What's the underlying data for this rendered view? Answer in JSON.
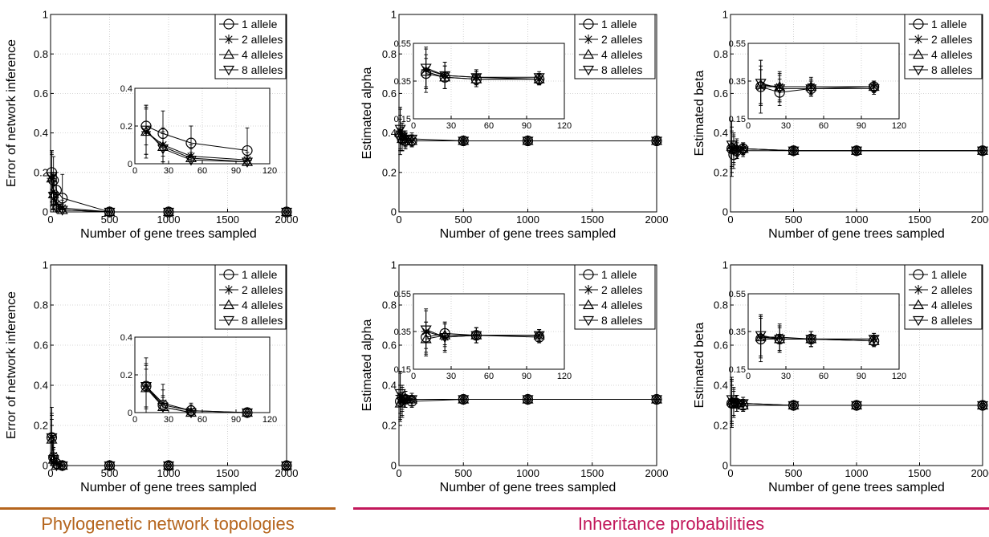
{
  "figure": {
    "footer_left_label": "Phylogenetic network topologies",
    "footer_right_label": "Inheritance probabilities",
    "footer_left_color": "#b5651d",
    "footer_right_color": "#c2185b"
  },
  "chart_data": [
    {
      "id": "top-left",
      "type": "line",
      "xlabel": "Number of gene trees sampled",
      "ylabel": "Error of network inference",
      "xlim": [
        0,
        2000
      ],
      "ylim": [
        0,
        1
      ],
      "xticks": [
        0,
        500,
        1000,
        1500,
        2000
      ],
      "yticks": [
        0,
        0.2,
        0.4,
        0.6,
        0.8,
        1
      ],
      "ytick_labels": [
        "0",
        "0.2",
        "0.4",
        "0.6",
        "0.8",
        "1"
      ],
      "legend": "top-right",
      "grid": true,
      "x": [
        10,
        25,
        50,
        100,
        500,
        1000,
        2000
      ],
      "series": [
        {
          "name": "1 allele",
          "marker": "circle",
          "values": [
            0.2,
            0.16,
            0.11,
            0.07,
            0,
            0,
            0
          ],
          "err": [
            0.1,
            0.12,
            0.09,
            0.12,
            0,
            0,
            0
          ]
        },
        {
          "name": "2 alleles",
          "marker": "star",
          "values": [
            0.17,
            0.1,
            0.04,
            0.02,
            0,
            0,
            0
          ],
          "err": [
            0.14,
            0.09,
            0.06,
            0.04,
            0,
            0,
            0
          ]
        },
        {
          "name": "4 alleles",
          "marker": "triangle-up",
          "values": [
            0.17,
            0.09,
            0.03,
            0.01,
            0,
            0,
            0
          ],
          "err": [
            0.12,
            0.08,
            0.05,
            0.03,
            0,
            0,
            0
          ]
        },
        {
          "name": "8 alleles",
          "marker": "triangle-down",
          "values": [
            0.18,
            0.08,
            0.02,
            0.01,
            0,
            0,
            0
          ],
          "err": [
            0.13,
            0.08,
            0.04,
            0.02,
            0,
            0,
            0
          ]
        }
      ],
      "inset": {
        "xlim": [
          0,
          120
        ],
        "ylim": [
          0,
          0.4
        ],
        "xticks": [
          0,
          30,
          60,
          90,
          120
        ],
        "yticks": [
          0,
          0.2,
          0.4
        ],
        "ytick_labels": [
          "0",
          "0.2",
          "0.4"
        ],
        "n_points": 4
      }
    },
    {
      "id": "top-middle",
      "type": "line",
      "xlabel": "Number of gene trees sampled",
      "ylabel": "Estimated alpha",
      "xlim": [
        0,
        2000
      ],
      "ylim": [
        0,
        1
      ],
      "xticks": [
        0,
        500,
        1000,
        1500,
        2000
      ],
      "yticks": [
        0,
        0.2,
        0.4,
        0.6,
        0.8,
        1
      ],
      "ytick_labels": [
        "0",
        "0.2",
        "0.4",
        "0.6",
        "0.8",
        "1"
      ],
      "legend": "top-right",
      "grid": true,
      "x": [
        10,
        25,
        50,
        100,
        500,
        1000,
        2000
      ],
      "series": [
        {
          "name": "1 allele",
          "marker": "circle",
          "values": [
            0.39,
            0.37,
            0.36,
            0.36,
            0.36,
            0.36,
            0.36
          ],
          "err": [
            0.08,
            0.06,
            0.04,
            0.03,
            0.01,
            0.01,
            0.01
          ]
        },
        {
          "name": "2 alleles",
          "marker": "star",
          "values": [
            0.41,
            0.38,
            0.37,
            0.36,
            0.36,
            0.36,
            0.36
          ],
          "err": [
            0.12,
            0.07,
            0.04,
            0.03,
            0.01,
            0.01,
            0.01
          ]
        },
        {
          "name": "4 alleles",
          "marker": "triangle-up",
          "values": [
            0.4,
            0.37,
            0.36,
            0.36,
            0.36,
            0.36,
            0.36
          ],
          "err": [
            0.09,
            0.06,
            0.04,
            0.03,
            0.01,
            0.01,
            0.01
          ]
        },
        {
          "name": "8 alleles",
          "marker": "triangle-down",
          "values": [
            0.42,
            0.38,
            0.37,
            0.37,
            0.36,
            0.36,
            0.36
          ],
          "err": [
            0.1,
            0.07,
            0.04,
            0.03,
            0.01,
            0.01,
            0.01
          ]
        }
      ],
      "inset": {
        "xlim": [
          0,
          120
        ],
        "ylim": [
          0.15,
          0.55
        ],
        "xticks": [
          0,
          30,
          60,
          90,
          120
        ],
        "yticks": [
          0.15,
          0.35,
          0.55
        ],
        "ytick_labels": [
          "0.15",
          "0.35",
          "0.55"
        ],
        "n_points": 4
      }
    },
    {
      "id": "top-right",
      "type": "line",
      "xlabel": "Number of gene trees sampled",
      "ylabel": "Estimated beta",
      "xlim": [
        0,
        2000
      ],
      "ylim": [
        0,
        1
      ],
      "xticks": [
        0,
        500,
        1000,
        1500,
        2000
      ],
      "yticks": [
        0,
        0.2,
        0.4,
        0.6,
        0.8,
        1
      ],
      "ytick_labels": [
        "0",
        "0.2",
        "0.4",
        "0.6",
        "0.8",
        "1"
      ],
      "legend": "top-right",
      "grid": true,
      "x": [
        10,
        25,
        50,
        100,
        500,
        1000,
        2000
      ],
      "series": [
        {
          "name": "1 allele",
          "marker": "circle",
          "values": [
            0.32,
            0.29,
            0.31,
            0.32,
            0.31,
            0.31,
            0.31
          ],
          "err": [
            0.09,
            0.07,
            0.04,
            0.03,
            0.01,
            0.01,
            0.01
          ]
        },
        {
          "name": "2 alleles",
          "marker": "star",
          "values": [
            0.32,
            0.32,
            0.32,
            0.32,
            0.31,
            0.31,
            0.31
          ],
          "err": [
            0.14,
            0.08,
            0.05,
            0.03,
            0.01,
            0.01,
            0.01
          ]
        },
        {
          "name": "4 alleles",
          "marker": "triangle-up",
          "values": [
            0.33,
            0.32,
            0.32,
            0.32,
            0.31,
            0.31,
            0.31
          ],
          "err": [
            0.1,
            0.07,
            0.04,
            0.03,
            0.01,
            0.01,
            0.01
          ]
        },
        {
          "name": "8 alleles",
          "marker": "triangle-down",
          "values": [
            0.34,
            0.31,
            0.31,
            0.31,
            0.31,
            0.31,
            0.31
          ],
          "err": [
            0.12,
            0.07,
            0.04,
            0.03,
            0.01,
            0.01,
            0.01
          ]
        }
      ],
      "inset": {
        "xlim": [
          0,
          120
        ],
        "ylim": [
          0.15,
          0.55
        ],
        "xticks": [
          0,
          30,
          60,
          90,
          120
        ],
        "yticks": [
          0.15,
          0.35,
          0.55
        ],
        "ytick_labels": [
          "0.15",
          "0.35",
          "0.55"
        ],
        "n_points": 4
      }
    },
    {
      "id": "bottom-left",
      "type": "line",
      "xlabel": "Number of gene trees sampled",
      "ylabel": "Error of network inference",
      "xlim": [
        0,
        2000
      ],
      "ylim": [
        0,
        1
      ],
      "xticks": [
        0,
        500,
        1000,
        1500,
        2000
      ],
      "yticks": [
        0,
        0.2,
        0.4,
        0.6,
        0.8,
        1
      ],
      "ytick_labels": [
        "0",
        "0.2",
        "0.4",
        "0.6",
        "0.8",
        "1"
      ],
      "legend": "top-right",
      "grid": true,
      "x": [
        10,
        25,
        50,
        100,
        500,
        1000,
        2000
      ],
      "series": [
        {
          "name": "1 allele",
          "marker": "circle",
          "values": [
            0.14,
            0.04,
            0.01,
            0,
            0,
            0,
            0
          ],
          "err": [
            0.15,
            0.08,
            0.03,
            0,
            0,
            0,
            0
          ]
        },
        {
          "name": "2 alleles",
          "marker": "star",
          "values": [
            0.14,
            0.05,
            0.01,
            0,
            0,
            0,
            0
          ],
          "err": [
            0.12,
            0.1,
            0.04,
            0,
            0,
            0,
            0
          ]
        },
        {
          "name": "4 alleles",
          "marker": "triangle-up",
          "values": [
            0.13,
            0.03,
            0,
            0,
            0,
            0,
            0
          ],
          "err": [
            0.1,
            0.05,
            0.02,
            0,
            0,
            0,
            0
          ]
        },
        {
          "name": "8 alleles",
          "marker": "triangle-down",
          "values": [
            0.14,
            0.03,
            0,
            0,
            0,
            0,
            0
          ],
          "err": [
            0.11,
            0.06,
            0.02,
            0,
            0,
            0,
            0
          ]
        }
      ],
      "inset": {
        "xlim": [
          0,
          120
        ],
        "ylim": [
          0,
          0.4
        ],
        "xticks": [
          0,
          30,
          60,
          90,
          120
        ],
        "yticks": [
          0,
          0.2,
          0.4
        ],
        "ytick_labels": [
          "0",
          "0.2",
          "0.4"
        ],
        "n_points": 4
      }
    },
    {
      "id": "bottom-middle",
      "type": "line",
      "xlabel": "Number of gene trees sampled",
      "ylabel": "Estimated alpha",
      "xlim": [
        0,
        2000
      ],
      "ylim": [
        0,
        1
      ],
      "xticks": [
        0,
        500,
        1000,
        1500,
        2000
      ],
      "yticks": [
        0,
        0.2,
        0.4,
        0.6,
        0.8,
        1
      ],
      "ytick_labels": [
        "0",
        "0.2",
        "0.4",
        "0.6",
        "0.8",
        "1"
      ],
      "legend": "top-right",
      "grid": true,
      "x": [
        10,
        25,
        50,
        100,
        500,
        1000,
        2000
      ],
      "series": [
        {
          "name": "1 allele",
          "marker": "circle",
          "values": [
            0.32,
            0.34,
            0.33,
            0.32,
            0.33,
            0.33,
            0.33
          ],
          "err": [
            0.08,
            0.06,
            0.04,
            0.03,
            0.01,
            0.01,
            0.01
          ]
        },
        {
          "name": "2 alleles",
          "marker": "star",
          "values": [
            0.35,
            0.32,
            0.33,
            0.33,
            0.33,
            0.33,
            0.33
          ],
          "err": [
            0.12,
            0.08,
            0.04,
            0.03,
            0.01,
            0.01,
            0.01
          ]
        },
        {
          "name": "4 alleles",
          "marker": "triangle-up",
          "values": [
            0.31,
            0.33,
            0.33,
            0.33,
            0.33,
            0.33,
            0.33
          ],
          "err": [
            0.09,
            0.06,
            0.04,
            0.03,
            0.01,
            0.01,
            0.01
          ]
        },
        {
          "name": "8 alleles",
          "marker": "triangle-down",
          "values": [
            0.36,
            0.32,
            0.33,
            0.33,
            0.33,
            0.33,
            0.33
          ],
          "err": [
            0.1,
            0.07,
            0.04,
            0.03,
            0.01,
            0.01,
            0.01
          ]
        }
      ],
      "inset": {
        "xlim": [
          0,
          120
        ],
        "ylim": [
          0.15,
          0.55
        ],
        "xticks": [
          0,
          30,
          60,
          90,
          120
        ],
        "yticks": [
          0.15,
          0.35,
          0.55
        ],
        "ytick_labels": [
          "0.15",
          "0.35",
          "0.55"
        ],
        "n_points": 4
      }
    },
    {
      "id": "bottom-right",
      "type": "line",
      "xlabel": "Number of gene trees sampled",
      "ylabel": "Estimated beta",
      "xlim": [
        0,
        2000
      ],
      "ylim": [
        0,
        1
      ],
      "xticks": [
        0,
        500,
        1000,
        1500,
        2000
      ],
      "yticks": [
        0,
        0.2,
        0.4,
        0.6,
        0.8,
        1
      ],
      "ytick_labels": [
        "0",
        "0.2",
        "0.4",
        "0.6",
        "0.8",
        "1"
      ],
      "legend": "top-right",
      "grid": true,
      "x": [
        10,
        25,
        50,
        100,
        500,
        1000,
        2000
      ],
      "series": [
        {
          "name": "1 allele",
          "marker": "circle",
          "values": [
            0.31,
            0.31,
            0.31,
            0.3,
            0.3,
            0.3,
            0.3
          ],
          "err": [
            0.12,
            0.07,
            0.04,
            0.03,
            0.01,
            0.01,
            0.01
          ]
        },
        {
          "name": "2 alleles",
          "marker": "star",
          "values": [
            0.32,
            0.32,
            0.31,
            0.31,
            0.3,
            0.3,
            0.3
          ],
          "err": [
            0.11,
            0.07,
            0.04,
            0.03,
            0.01,
            0.01,
            0.01
          ]
        },
        {
          "name": "4 alleles",
          "marker": "triangle-up",
          "values": [
            0.32,
            0.31,
            0.31,
            0.3,
            0.3,
            0.3,
            0.3
          ],
          "err": [
            0.1,
            0.06,
            0.04,
            0.03,
            0.01,
            0.01,
            0.01
          ]
        },
        {
          "name": "8 alleles",
          "marker": "triangle-down",
          "values": [
            0.33,
            0.31,
            0.31,
            0.31,
            0.3,
            0.3,
            0.3
          ],
          "err": [
            0.11,
            0.07,
            0.04,
            0.03,
            0.01,
            0.01,
            0.01
          ]
        }
      ],
      "inset": {
        "xlim": [
          0,
          120
        ],
        "ylim": [
          0.15,
          0.55
        ],
        "xticks": [
          0,
          30,
          60,
          90,
          120
        ],
        "yticks": [
          0.15,
          0.35,
          0.55
        ],
        "ytick_labels": [
          "0.15",
          "0.35",
          "0.55"
        ],
        "n_points": 4
      }
    }
  ]
}
